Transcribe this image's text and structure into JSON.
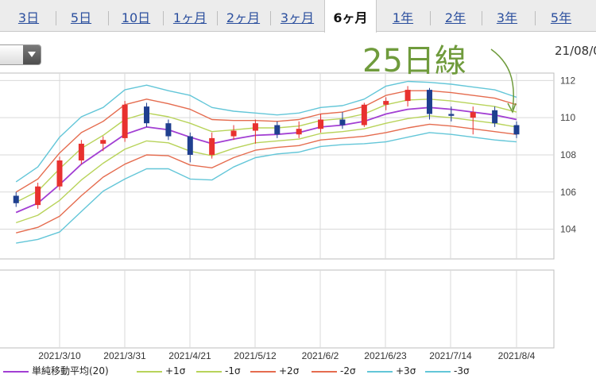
{
  "tabs": [
    {
      "label": "3日",
      "active": false
    },
    {
      "label": "5日",
      "active": false
    },
    {
      "label": "10日",
      "active": false
    },
    {
      "label": "1ヶ月",
      "active": false
    },
    {
      "label": "2ヶ月",
      "active": false
    },
    {
      "label": "3ヶ月",
      "active": false
    },
    {
      "label": "6ヶ月",
      "active": true
    },
    {
      "label": "1年",
      "active": false
    },
    {
      "label": "2年",
      "active": false
    },
    {
      "label": "3年",
      "active": false
    },
    {
      "label": "5年",
      "active": false
    }
  ],
  "date_label": "21/08/0",
  "annotation": "25日線",
  "chart_data": {
    "type": "candlestick",
    "y_ticks": [
      104,
      106,
      108,
      110,
      112
    ],
    "ylim": [
      102.4,
      112.4
    ],
    "x_ticks": [
      "2021/3/10",
      "2021/3/31",
      "2021/4/21",
      "2021/5/12",
      "2021/6/2",
      "2021/6/23",
      "2021/7/14",
      "2021/8/4"
    ],
    "grid": true,
    "colors": {
      "up": "#e8312f",
      "down": "#1f3f8f",
      "ma": "#a23fd3",
      "sigma1": "#b8d35a",
      "sigma2": "#e56c4f",
      "sigma3": "#63c6d8"
    },
    "legend": [
      {
        "label": "単純移動平均(20)",
        "color": "#a23fd3"
      },
      {
        "label": "+1σ",
        "color": "#b8d35a"
      },
      {
        "label": "-1σ",
        "color": "#b8d35a"
      },
      {
        "label": "+2σ",
        "color": "#e56c4f"
      },
      {
        "label": "-2σ",
        "color": "#e56c4f"
      },
      {
        "label": "+3σ",
        "color": "#63c6d8"
      },
      {
        "label": "-3σ",
        "color": "#63c6d8"
      }
    ],
    "bollinger_20": [
      {
        "date": "2021/2/24",
        "ma": 104.9,
        "sd": 0.55
      },
      {
        "date": "2021/3/3",
        "ma": 105.4,
        "sd": 0.65
      },
      {
        "date": "2021/3/10",
        "ma": 106.4,
        "sd": 0.85
      },
      {
        "date": "2021/3/17",
        "ma": 107.5,
        "sd": 0.85
      },
      {
        "date": "2021/3/24",
        "ma": 108.3,
        "sd": 0.75
      },
      {
        "date": "2021/3/31",
        "ma": 109.1,
        "sd": 0.8
      },
      {
        "date": "2021/4/7",
        "ma": 109.5,
        "sd": 0.75
      },
      {
        "date": "2021/4/14",
        "ma": 109.35,
        "sd": 0.7
      },
      {
        "date": "2021/4/21",
        "ma": 108.95,
        "sd": 0.75
      },
      {
        "date": "2021/4/28",
        "ma": 108.6,
        "sd": 0.65
      },
      {
        "date": "2021/5/5",
        "ma": 108.85,
        "sd": 0.5
      },
      {
        "date": "2021/5/12",
        "ma": 109.05,
        "sd": 0.4
      },
      {
        "date": "2021/5/19",
        "ma": 109.1,
        "sd": 0.35
      },
      {
        "date": "2021/5/26",
        "ma": 109.2,
        "sd": 0.35
      },
      {
        "date": "2021/6/2",
        "ma": 109.5,
        "sd": 0.35
      },
      {
        "date": "2021/6/9",
        "ma": 109.6,
        "sd": 0.35
      },
      {
        "date": "2021/6/16",
        "ma": 109.8,
        "sd": 0.4
      },
      {
        "date": "2021/6/23",
        "ma": 110.2,
        "sd": 0.5
      },
      {
        "date": "2021/6/30",
        "ma": 110.45,
        "sd": 0.5
      },
      {
        "date": "2021/7/7",
        "ma": 110.55,
        "sd": 0.45
      },
      {
        "date": "2021/7/14",
        "ma": 110.45,
        "sd": 0.45
      },
      {
        "date": "2021/7/21",
        "ma": 110.3,
        "sd": 0.45
      },
      {
        "date": "2021/7/28",
        "ma": 110.15,
        "sd": 0.45
      },
      {
        "date": "2021/8/4",
        "ma": 109.9,
        "sd": 0.4
      }
    ],
    "candles": [
      {
        "date": "2021/2/24",
        "open": 105.8,
        "close": 105.4,
        "high": 106.0,
        "low": 105.2
      },
      {
        "date": "2021/3/3",
        "open": 105.3,
        "close": 106.3,
        "high": 106.5,
        "low": 105.1
      },
      {
        "date": "2021/3/10",
        "open": 106.3,
        "close": 107.7,
        "high": 107.9,
        "low": 106.1
      },
      {
        "date": "2021/3/17",
        "open": 107.7,
        "close": 108.6,
        "high": 108.8,
        "low": 107.5
      },
      {
        "date": "2021/3/24",
        "open": 108.6,
        "close": 108.8,
        "high": 109.0,
        "low": 108.2
      },
      {
        "date": "2021/3/31",
        "open": 108.9,
        "close": 110.7,
        "high": 110.9,
        "low": 108.7
      },
      {
        "date": "2021/4/7",
        "open": 110.6,
        "close": 109.7,
        "high": 110.8,
        "low": 109.5
      },
      {
        "date": "2021/4/14",
        "open": 109.7,
        "close": 109.0,
        "high": 109.9,
        "low": 108.8
      },
      {
        "date": "2021/4/21",
        "open": 109.0,
        "close": 108.0,
        "high": 109.2,
        "low": 107.6
      },
      {
        "date": "2021/4/28",
        "open": 108.0,
        "close": 108.9,
        "high": 109.2,
        "low": 107.8
      },
      {
        "date": "2021/5/5",
        "open": 109.0,
        "close": 109.3,
        "high": 109.6,
        "low": 108.8
      },
      {
        "date": "2021/5/12",
        "open": 109.3,
        "close": 109.7,
        "high": 109.9,
        "low": 108.6
      },
      {
        "date": "2021/5/19",
        "open": 109.6,
        "close": 109.1,
        "high": 109.8,
        "low": 108.9
      },
      {
        "date": "2021/5/26",
        "open": 109.1,
        "close": 109.4,
        "high": 109.8,
        "low": 108.9
      },
      {
        "date": "2021/6/2",
        "open": 109.4,
        "close": 109.9,
        "high": 110.2,
        "low": 109.2
      },
      {
        "date": "2021/6/9",
        "open": 109.9,
        "close": 109.6,
        "high": 110.3,
        "low": 109.4
      },
      {
        "date": "2021/6/16",
        "open": 109.6,
        "close": 110.7,
        "high": 110.8,
        "low": 109.5
      },
      {
        "date": "2021/6/23",
        "open": 110.7,
        "close": 110.9,
        "high": 111.1,
        "low": 110.4
      },
      {
        "date": "2021/6/30",
        "open": 110.9,
        "close": 111.5,
        "high": 111.7,
        "low": 110.6
      },
      {
        "date": "2021/7/7",
        "open": 111.5,
        "close": 110.2,
        "high": 111.6,
        "low": 109.9
      },
      {
        "date": "2021/7/14",
        "open": 110.2,
        "close": 110.1,
        "high": 110.6,
        "low": 109.8
      },
      {
        "date": "2021/7/21",
        "open": 110.0,
        "close": 110.3,
        "high": 110.6,
        "low": 109.1
      },
      {
        "date": "2021/7/28",
        "open": 110.4,
        "close": 109.7,
        "high": 110.6,
        "low": 109.5
      },
      {
        "date": "2021/8/4",
        "open": 109.6,
        "close": 109.1,
        "high": 109.8,
        "low": 108.9
      }
    ]
  }
}
